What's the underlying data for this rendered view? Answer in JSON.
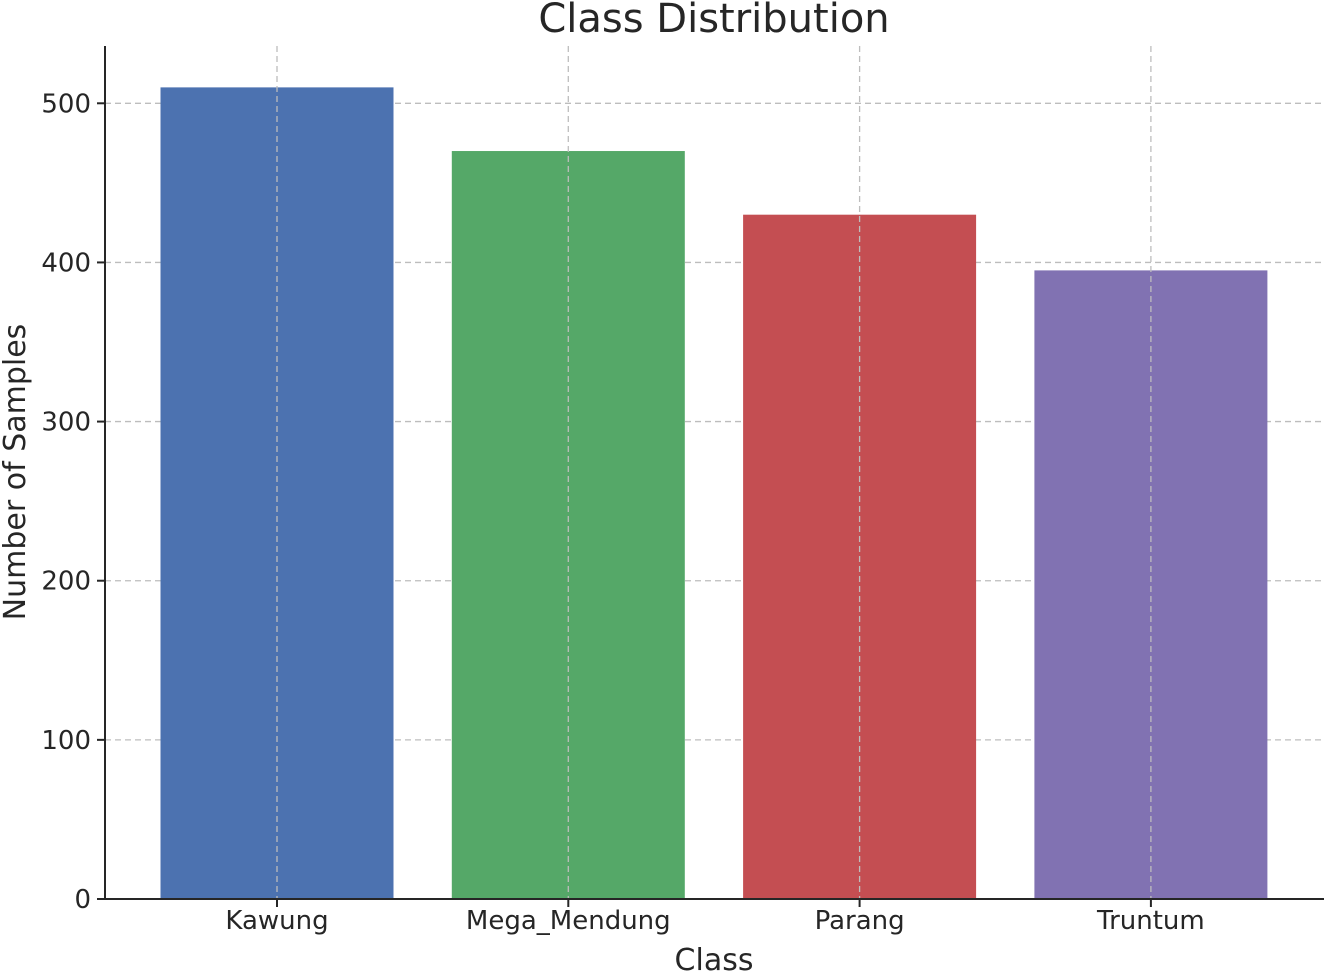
{
  "chart_data": {
    "type": "bar",
    "title": "Class Distribution",
    "xlabel": "Class",
    "ylabel": "Number of Samples",
    "categories": [
      "Kawung",
      "Mega_Mendung",
      "Parang",
      "Truntum"
    ],
    "values": [
      510,
      470,
      430,
      395
    ],
    "colors": [
      "#4c72b0",
      "#55a868",
      "#c44e52",
      "#8172b2"
    ],
    "ylim": [
      0,
      536
    ],
    "yticks": [
      0,
      100,
      200,
      300,
      400,
      500
    ],
    "ytick_labels": [
      "0",
      "100",
      "200",
      "300",
      "400",
      "500"
    ],
    "grid": true,
    "legend": "none"
  }
}
